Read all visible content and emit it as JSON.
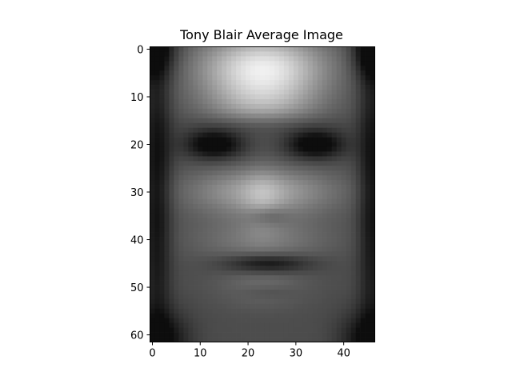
{
  "chart_data": {
    "type": "heatmap",
    "title": "Tony Blair Average Image",
    "xlabel": "",
    "ylabel": "",
    "colormap": "gray",
    "grid": false,
    "legend": "none",
    "image_shape": [
      62,
      47
    ],
    "xlim": [
      -0.5,
      46.5
    ],
    "ylim": [
      61.5,
      -0.5
    ],
    "x_ticks": [
      0,
      10,
      20,
      30,
      40
    ],
    "y_ticks": [
      0,
      10,
      20,
      30,
      40,
      50,
      60
    ],
    "colors": {
      "axis": "#000000",
      "background": "#ffffff"
    }
  }
}
